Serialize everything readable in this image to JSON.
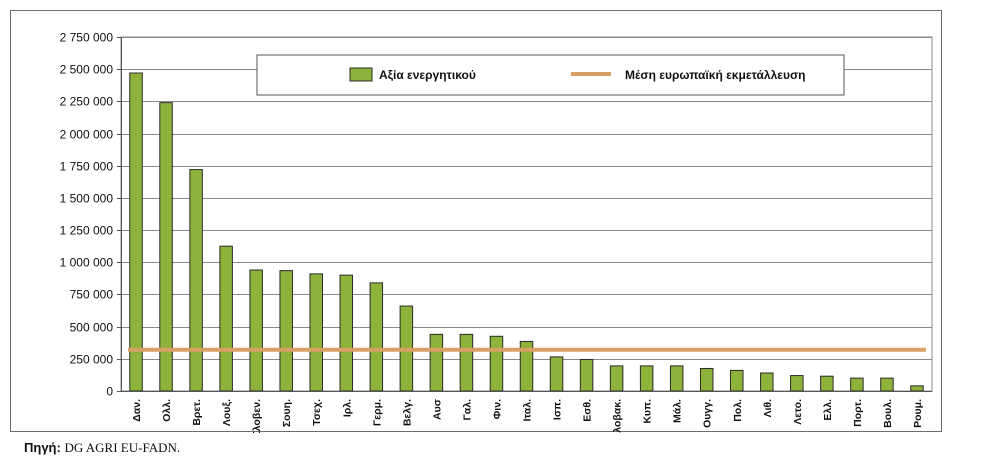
{
  "chart_data": {
    "type": "bar",
    "categories": [
      "Δαν.",
      "Ολλ.",
      "Βρετ.",
      "Λουξ.",
      "Σλοβεν.",
      "Σουη.",
      "Τσεχ.",
      "Ιρλ.",
      "Γερμ.",
      "Βελγ.",
      "Αυσ",
      "Γαλ.",
      "Φιν.",
      "Ιταλ.",
      "Ισπ.",
      "Εσθ.",
      "Σλοβακ.",
      "Κυπ.",
      "Μάλ.",
      "Ουγγ.",
      "Πολ.",
      "Λιθ.",
      "Λετο.",
      "Ελλ.",
      "Πορτ.",
      "Βουλ.",
      "Ρουμ."
    ],
    "series": [
      {
        "name": "Αξία ενεργητικού",
        "type": "bar",
        "color": "#8db33a",
        "values": [
          2470000,
          2240000,
          1720000,
          1125000,
          940000,
          935000,
          910000,
          900000,
          840000,
          660000,
          440000,
          440000,
          425000,
          385000,
          265000,
          245000,
          195000,
          195000,
          195000,
          175000,
          160000,
          140000,
          120000,
          115000,
          100000,
          100000,
          40000
        ]
      },
      {
        "name": "Μέση ευρωπαϊκή εκμετάλλευση",
        "type": "line",
        "color": "#d9a066",
        "value": 320000
      }
    ],
    "ylim": [
      0,
      2750000
    ],
    "yticks": [
      "0",
      "250 000",
      "500 000",
      "750 000",
      "1 000 000",
      "1 250 000",
      "1 500 000",
      "1 750 000",
      "2 000 000",
      "2 250 000",
      "2 500 000",
      "2 750 000"
    ],
    "grid": true,
    "legend": "top-center"
  },
  "source": {
    "label": "Πηγή:",
    "text": "DG AGRI EU-FADN."
  }
}
